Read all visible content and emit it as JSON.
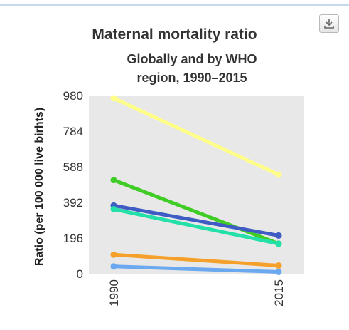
{
  "page": {
    "accent_color": "#c6d9ea",
    "export_icon": "download-icon"
  },
  "chart_data": {
    "type": "line",
    "title": "Maternal mortality ratio",
    "subtitle": "Globally and by WHO region, 1990–2015",
    "xlabel": "",
    "ylabel": "Ratio (per 100 000 live birhts)",
    "x": [
      "1990",
      "2015"
    ],
    "ylim": [
      0,
      980
    ],
    "yticks": [
      "0",
      "196",
      "392",
      "588",
      "784",
      "980"
    ],
    "grid": false,
    "legend": "none",
    "plot_background": "#e8e8e8",
    "series": [
      {
        "color": "#ffff88",
        "values": [
          965,
          545
        ]
      },
      {
        "color": "#3fcc24",
        "values": [
          515,
          165
        ]
      },
      {
        "color": "#3e5cc4",
        "values": [
          375,
          210
        ]
      },
      {
        "color": "#22e0a8",
        "values": [
          355,
          165
        ]
      },
      {
        "color": "#f5a02a",
        "values": [
          105,
          45
        ]
      },
      {
        "color": "#6aa8f0",
        "values": [
          40,
          10
        ]
      }
    ]
  }
}
